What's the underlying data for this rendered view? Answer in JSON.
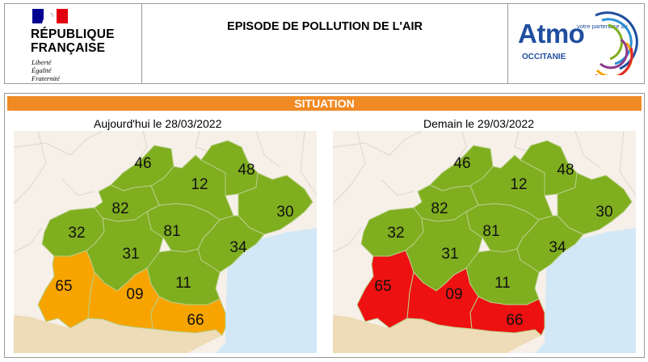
{
  "header": {
    "republic_name": [
      "RÉPUBLIQUE",
      "FRANÇAISE"
    ],
    "motto": [
      "Liberté",
      "Égalité",
      "Fraternité"
    ],
    "title": "EPISODE DE POLLUTION DE L'AIR",
    "atmo": {
      "word": "Atmo",
      "subtitle": "OCCITANIE",
      "tagline": "votre partenaire air"
    }
  },
  "situation": {
    "label": "SITUATION",
    "today": "Aujourd'hui le 28/03/2022",
    "tomorrow": "Demain le 29/03/2022"
  },
  "colors": {
    "good": "#7fae1f",
    "alert": "#f7a400",
    "high": "#ee1111",
    "accent": "#f08a24"
  },
  "maps": {
    "today": {
      "46": "good",
      "12": "good",
      "48": "good",
      "82": "good",
      "32": "good",
      "81": "good",
      "30": "good",
      "31": "good",
      "34": "good",
      "11": "good",
      "65": "alert",
      "09": "alert",
      "66": "alert"
    },
    "tomorrow": {
      "46": "good",
      "12": "good",
      "48": "good",
      "82": "good",
      "32": "good",
      "81": "good",
      "30": "good",
      "31": "good",
      "34": "good",
      "11": "good",
      "65": "high",
      "09": "high",
      "66": "high"
    }
  }
}
